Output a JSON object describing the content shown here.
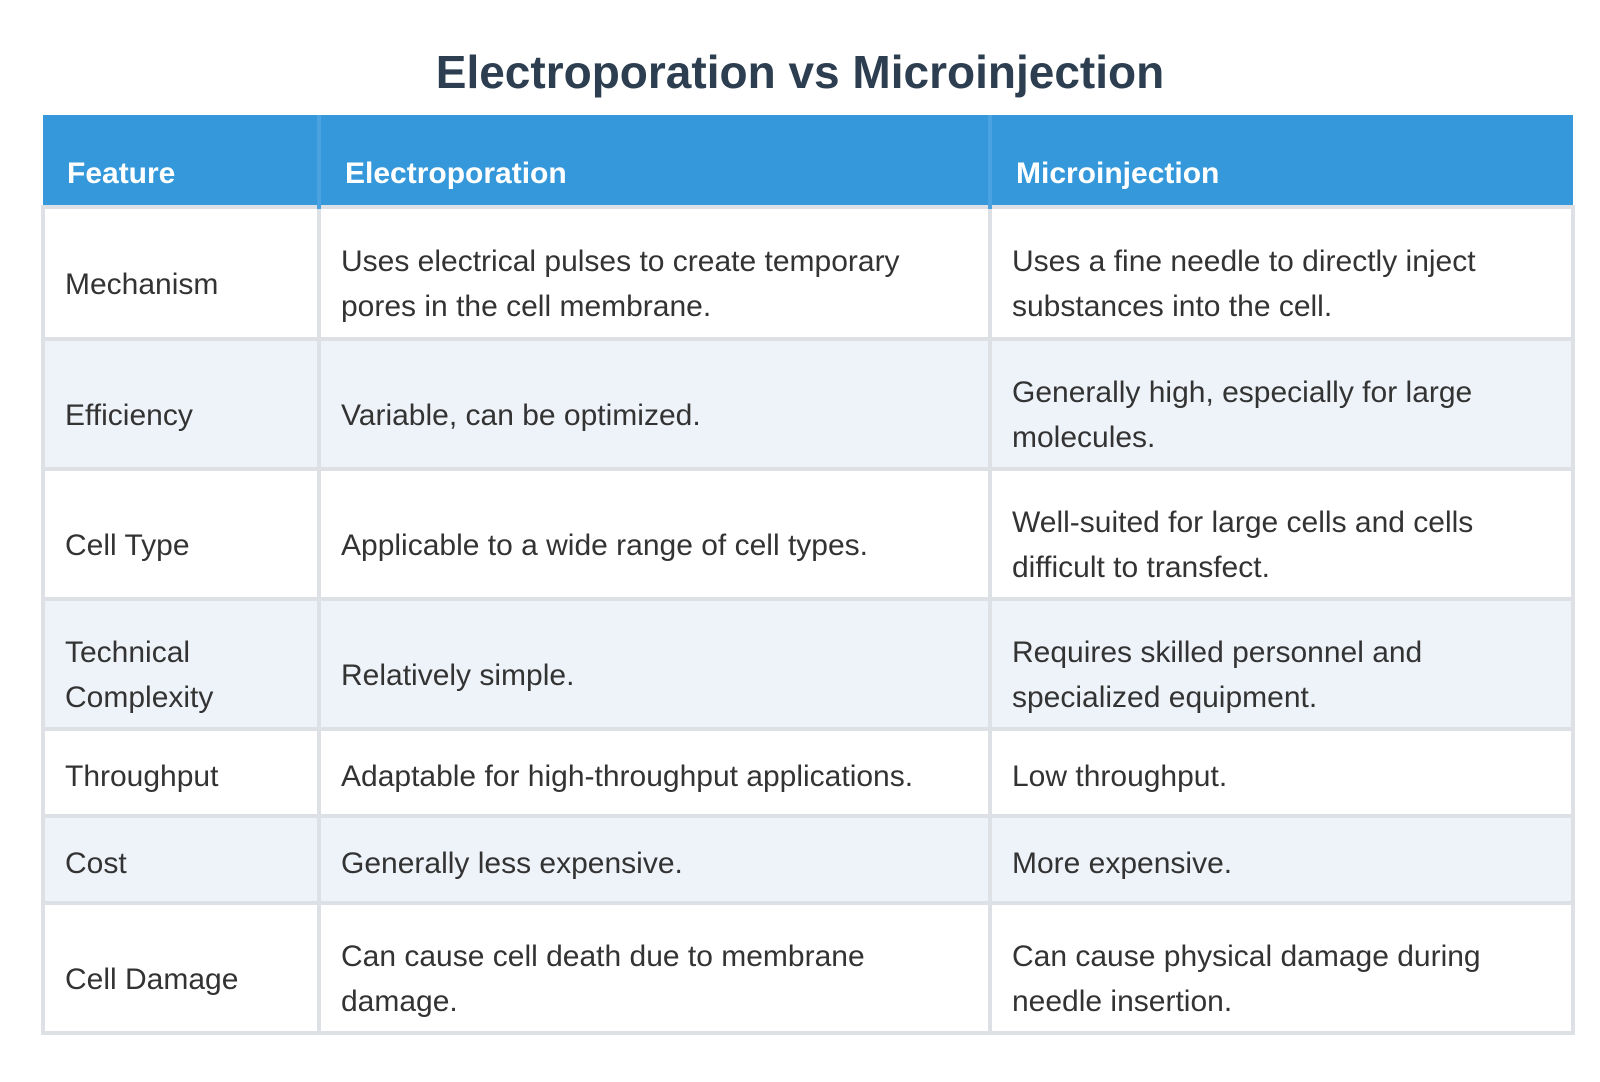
{
  "title": "Electroporation vs Microinjection",
  "colors": {
    "header_bg": "#3498db",
    "title_text": "#2c3e50",
    "row_alt_bg": "#eef3f9"
  },
  "table": {
    "headers": [
      "Feature",
      "Electroporation",
      "Microinjection"
    ],
    "rows": [
      {
        "feature": "Mechanism",
        "electroporation": "Uses electrical pulses to create temporary pores in the cell membrane.",
        "microinjection": "Uses a fine needle to directly inject substances into the cell."
      },
      {
        "feature": "Efficiency",
        "electroporation": "Variable, can be optimized.",
        "microinjection": "Generally high, especially for large molecules."
      },
      {
        "feature": "Cell Type",
        "electroporation": "Applicable to a wide range of cell types.",
        "microinjection": "Well-suited for large cells and cells difficult to transfect."
      },
      {
        "feature": "Technical Complexity",
        "electroporation": "Relatively simple.",
        "microinjection": "Requires skilled personnel and specialized equipment."
      },
      {
        "feature": "Throughput",
        "electroporation": "Adaptable for high-throughput applications.",
        "microinjection": "Low throughput."
      },
      {
        "feature": "Cost",
        "electroporation": "Generally less expensive.",
        "microinjection": "More expensive."
      },
      {
        "feature": "Cell Damage",
        "electroporation": "Can cause cell death due to membrane damage.",
        "microinjection": "Can cause physical damage during needle insertion."
      }
    ]
  }
}
